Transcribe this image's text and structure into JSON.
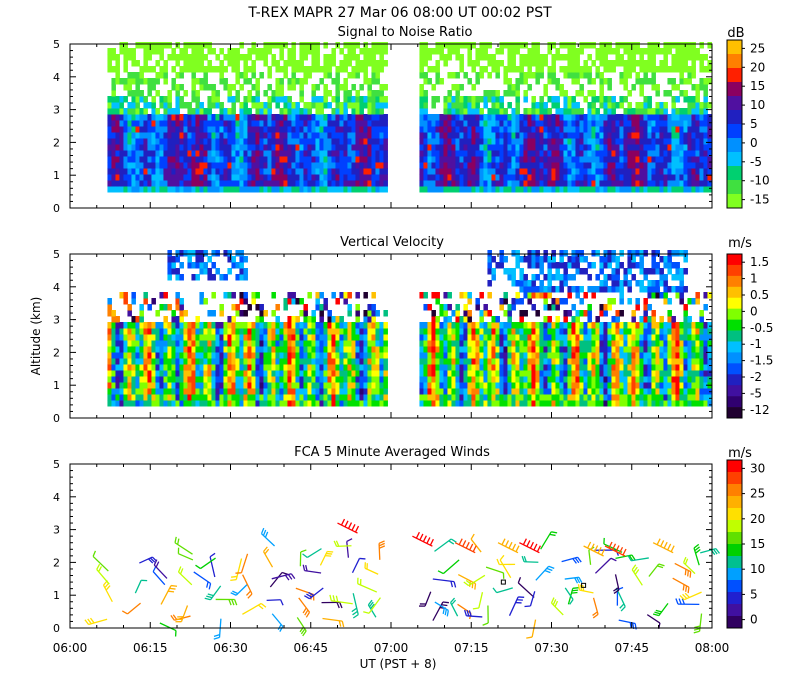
{
  "title": "T-REX   MAPR 27 Mar 06   08:00 UT   00:02   PST",
  "x_axis": {
    "label": "UT  (PST + 8)",
    "ticks": [
      "06:00",
      "06:15",
      "06:30",
      "06:45",
      "07:00",
      "07:15",
      "07:30",
      "07:45",
      "08:00"
    ],
    "range_minutes": [
      0,
      120
    ]
  },
  "shared_ylabel": "Altitude (km)",
  "chart_data": [
    {
      "type": "heatmap",
      "title": "Signal to Noise Ratio",
      "ylabel": "Altitude (km)",
      "ylim": [
        0,
        5
      ],
      "yticks": [
        "0",
        "1",
        "2",
        "3",
        "4",
        "5"
      ],
      "data_gap_minutes": [
        59,
        65
      ],
      "data_start_minute": 7,
      "colorbar": {
        "unit": "dB",
        "labels": [
          "25",
          "20",
          "15",
          "10",
          "5",
          "0",
          "-5",
          "-10",
          "-15"
        ],
        "colors": [
          "#ffc000",
          "#ff8000",
          "#ff2000",
          "#8b0060",
          "#5010a0",
          "#2020c0",
          "#0040ff",
          "#0090ff",
          "#00c0ff",
          "#00d070",
          "#40e040",
          "#80ff20"
        ]
      }
    },
    {
      "type": "heatmap",
      "title": "Vertical Velocity",
      "ylabel": "Altitude (km)",
      "ylim": [
        0,
        5
      ],
      "yticks": [
        "0",
        "1",
        "2",
        "3",
        "4",
        "5"
      ],
      "data_gap_minutes": [
        59,
        65
      ],
      "data_start_minute": 7,
      "colorbar": {
        "unit": "m/s",
        "labels": [
          "1.5",
          "1",
          "0.5",
          "0",
          "-0.5",
          "-1",
          "-1.5",
          "-2",
          "-5",
          "-12"
        ],
        "colors": [
          "#ff0000",
          "#ff4000",
          "#ff8000",
          "#ffc000",
          "#ffff00",
          "#80ff00",
          "#00e000",
          "#00c080",
          "#00c0ff",
          "#0090ff",
          "#0050ff",
          "#2020c0",
          "#4010a0",
          "#300070",
          "#200030"
        ]
      }
    },
    {
      "type": "barbs",
      "title": "FCA 5 Minute Averaged Winds",
      "ylabel": "Altitude (km)",
      "ylim": [
        0,
        5
      ],
      "yticks": [
        "0",
        "1",
        "2",
        "3",
        "4",
        "5"
      ],
      "colorbar": {
        "unit": "m/s",
        "labels": [
          "30",
          "25",
          "20",
          "15",
          "10",
          "5",
          "0"
        ],
        "colors": [
          "#ff0000",
          "#ff4000",
          "#ff8000",
          "#ffb000",
          "#ffe000",
          "#c0ff00",
          "#60e000",
          "#00d000",
          "#00c090",
          "#00a0ff",
          "#0050ff",
          "#2020d0",
          "#4010a0",
          "#300060"
        ]
      }
    }
  ]
}
